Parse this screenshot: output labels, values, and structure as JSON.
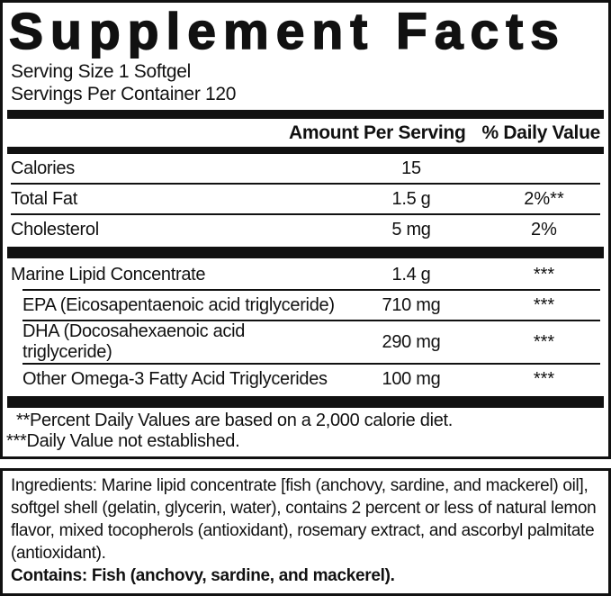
{
  "panel": {
    "title": "Supplement Facts",
    "serving_size": "Serving Size 1 Softgel",
    "servings_per_container": "Servings Per Container 120",
    "columns": {
      "amount": "Amount Per Serving",
      "daily_value": "% Daily Value"
    },
    "rows": [
      {
        "name": "Calories",
        "amount": "15",
        "daily_value": ""
      },
      {
        "name": "Total Fat",
        "amount": "1.5 g",
        "daily_value": "2%**"
      },
      {
        "name": "Cholesterol",
        "amount": "5 mg",
        "daily_value": "2%"
      },
      {
        "name": "Marine Lipid Concentrate",
        "amount": "1.4 g",
        "daily_value": "***"
      },
      {
        "name": "EPA (Eicosapentaenoic acid triglyceride)",
        "amount": "710 mg",
        "daily_value": "***"
      },
      {
        "name": "DHA (Docosahexaenoic acid triglyceride)",
        "amount": "290 mg",
        "daily_value": "***"
      },
      {
        "name": "Other Omega-3 Fatty Acid Triglycerides",
        "amount": "100 mg",
        "daily_value": "***"
      }
    ],
    "footnotes": [
      "**Percent Daily Values are based on a 2,000 calorie diet.",
      "***Daily Value not established."
    ]
  },
  "ingredients": {
    "label": "Ingredients:",
    "text": " Marine lipid concentrate [fish (anchovy, sardine, and mackerel) oil], softgel shell (gelatin, glycerin, water), contains 2 percent or less of natural lemon flavor, mixed tocopherols (antioxidant), rosemary extract, and ascorbyl palmitate (antioxidant).",
    "contains": "Contains: Fish (anchovy, sardine, and mackerel)."
  },
  "colors": {
    "text": "#111111",
    "background": "#ffffff",
    "rule": "#111111"
  }
}
